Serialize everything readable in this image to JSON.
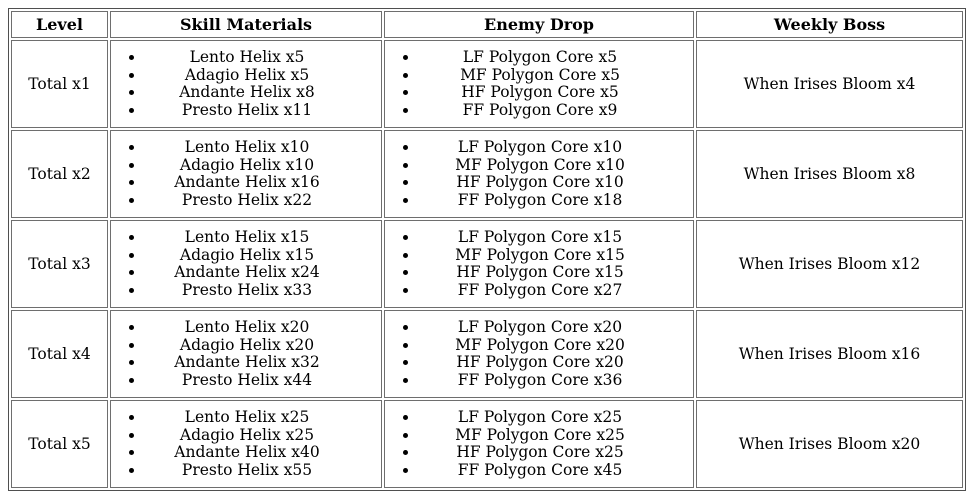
{
  "table": {
    "columns": {
      "level": "Level",
      "skill_materials": "Skill Materials",
      "enemy_drop": "Enemy Drop",
      "weekly_boss": "Weekly Boss"
    },
    "rows": [
      {
        "level": "Total x1",
        "skill_materials": [
          "Lento Helix x5",
          "Adagio Helix x5",
          "Andante Helix x8",
          "Presto Helix x11"
        ],
        "enemy_drop": [
          "LF Polygon Core x5",
          "MF Polygon Core x5",
          "HF Polygon Core x5",
          "FF Polygon Core x9"
        ],
        "weekly_boss": "When Irises Bloom x4"
      },
      {
        "level": "Total x2",
        "skill_materials": [
          "Lento Helix x10",
          "Adagio Helix x10",
          "Andante Helix x16",
          "Presto Helix x22"
        ],
        "enemy_drop": [
          "LF Polygon Core x10",
          "MF Polygon Core x10",
          "HF Polygon Core x10",
          "FF Polygon Core x18"
        ],
        "weekly_boss": "When Irises Bloom x8"
      },
      {
        "level": "Total x3",
        "skill_materials": [
          "Lento Helix x15",
          "Adagio Helix x15",
          "Andante Helix x24",
          "Presto Helix x33"
        ],
        "enemy_drop": [
          "LF Polygon Core x15",
          "MF Polygon Core x15",
          "HF Polygon Core x15",
          "FF Polygon Core x27"
        ],
        "weekly_boss": "When Irises Bloom x12"
      },
      {
        "level": "Total x4",
        "skill_materials": [
          "Lento Helix x20",
          "Adagio Helix x20",
          "Andante Helix x32",
          "Presto Helix x44"
        ],
        "enemy_drop": [
          "LF Polygon Core x20",
          "MF Polygon Core x20",
          "HF Polygon Core x20",
          "FF Polygon Core x36"
        ],
        "weekly_boss": "When Irises Bloom x16"
      },
      {
        "level": "Total x5",
        "skill_materials": [
          "Lento Helix x25",
          "Adagio Helix x25",
          "Andante Helix x40",
          "Presto Helix x55"
        ],
        "enemy_drop": [
          "LF Polygon Core x25",
          "MF Polygon Core x25",
          "HF Polygon Core x25",
          "FF Polygon Core x45"
        ],
        "weekly_boss": "When Irises Bloom x20"
      }
    ]
  },
  "colors": {
    "text": "#000000",
    "background": "#ffffff",
    "outer_border": "#4f4f4f",
    "cell_border": "#6e6e6e"
  }
}
